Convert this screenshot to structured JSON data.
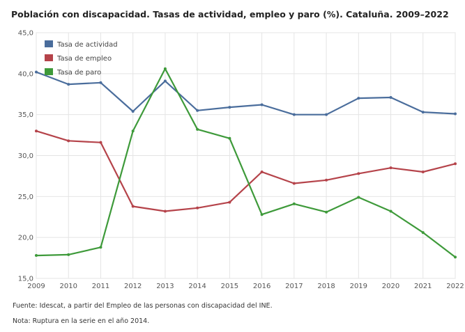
{
  "title": "Población con discapacidad. Tasas de actividad, empleo y paro (%). Cataluña. 2009–2022",
  "source": "Fuente: Idescat, a partir del Empleo de las personas con discapacidad del INE.",
  "note": "Nota: Ruptura en la serie en el año 2014.",
  "chart_data": {
    "type": "line",
    "x": [
      "2009",
      "2010",
      "2011",
      "2012",
      "2013",
      "2014",
      "2015",
      "2016",
      "2017",
      "2018",
      "2019",
      "2020",
      "2021",
      "2022"
    ],
    "ylim": [
      15,
      45
    ],
    "yticks": [
      "15,0",
      "20,0",
      "25,0",
      "30,0",
      "35,0",
      "40,0",
      "45,0"
    ],
    "ytick_values": [
      15,
      20,
      25,
      30,
      35,
      40,
      45
    ],
    "grid": true,
    "legend": "top-left",
    "series": [
      {
        "name": "Tasa de actividad",
        "color": "#4a6d9c",
        "values": [
          40.2,
          38.7,
          38.9,
          35.4,
          39.1,
          35.5,
          35.9,
          36.2,
          35.0,
          35.0,
          37.0,
          37.1,
          35.3,
          35.1
        ]
      },
      {
        "name": "Tasa de empleo",
        "color": "#b5434a",
        "values": [
          33.0,
          31.8,
          31.6,
          23.8,
          23.2,
          23.6,
          24.3,
          28.0,
          26.6,
          27.0,
          27.8,
          28.5,
          28.0,
          29.0
        ]
      },
      {
        "name": "Tasa de paro",
        "color": "#3e9a3a",
        "values": [
          17.8,
          17.9,
          18.8,
          33.0,
          40.6,
          33.2,
          32.1,
          22.8,
          24.1,
          23.1,
          24.9,
          23.2,
          20.6,
          17.6
        ]
      }
    ]
  }
}
